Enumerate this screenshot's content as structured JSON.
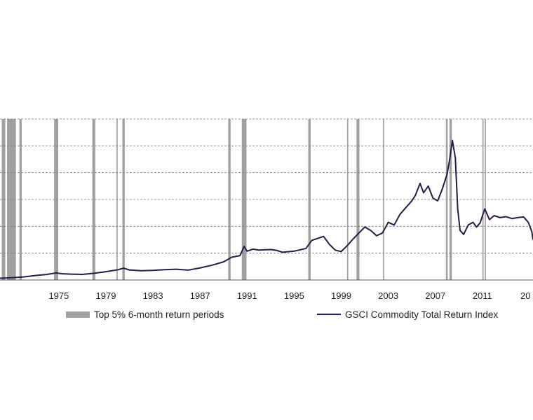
{
  "chart_data": {
    "type": "line",
    "title": "",
    "xlabel": "",
    "ylabel": "",
    "x_tick_labels": [
      "1975",
      "1979",
      "1983",
      "1987",
      "1991",
      "1995",
      "1999",
      "2003",
      "2007",
      "2011",
      "20"
    ],
    "grid": "horizontal dashed",
    "legend_position": "bottom",
    "legend": {
      "bars_label": "Top 5% 6-month return periods",
      "line_label": "GSCI Commodity Total Return Index"
    },
    "colors": {
      "line": "#2a1a48",
      "shade": "#a0a0a0",
      "grid": "#7f7f7f"
    },
    "highlight_periods": [
      [
        1970.15,
        1970.45
      ],
      [
        1970.6,
        1971.35
      ],
      [
        1971.65,
        1971.85
      ],
      [
        1974.6,
        1974.95
      ],
      [
        1977.85,
        1978.1
      ],
      [
        1979.9,
        1980.0
      ],
      [
        1980.4,
        1980.6
      ],
      [
        1989.4,
        1989.6
      ],
      [
        1990.55,
        1990.95
      ],
      [
        1996.2,
        1996.4
      ],
      [
        1999.5,
        1999.6
      ],
      [
        2000.3,
        2000.55
      ],
      [
        2002.55,
        2002.65
      ],
      [
        2007.9,
        2008.05
      ],
      [
        2008.2,
        2008.4
      ],
      [
        2011.0,
        2011.1
      ],
      [
        2011.2,
        2011.3
      ]
    ],
    "series": [
      {
        "name": "GSCI Commodity Total Return Index",
        "points": [
          [
            1970.0,
            130
          ],
          [
            1971.0,
            170
          ],
          [
            1972.0,
            230
          ],
          [
            1973.0,
            330
          ],
          [
            1974.0,
            420
          ],
          [
            1974.8,
            530
          ],
          [
            1975.2,
            470
          ],
          [
            1976.0,
            440
          ],
          [
            1977.0,
            420
          ],
          [
            1978.0,
            500
          ],
          [
            1979.0,
            620
          ],
          [
            1980.0,
            760
          ],
          [
            1980.5,
            880
          ],
          [
            1981.0,
            750
          ],
          [
            1982.0,
            690
          ],
          [
            1983.0,
            720
          ],
          [
            1984.0,
            770
          ],
          [
            1985.0,
            800
          ],
          [
            1986.0,
            740
          ],
          [
            1987.0,
            900
          ],
          [
            1988.0,
            1100
          ],
          [
            1989.0,
            1350
          ],
          [
            1989.7,
            1700
          ],
          [
            1990.4,
            1820
          ],
          [
            1990.75,
            2500
          ],
          [
            1991.0,
            2150
          ],
          [
            1991.5,
            2300
          ],
          [
            1992.0,
            2230
          ],
          [
            1993.0,
            2270
          ],
          [
            1993.5,
            2210
          ],
          [
            1994.0,
            2070
          ],
          [
            1995.0,
            2150
          ],
          [
            1996.0,
            2350
          ],
          [
            1996.5,
            2950
          ],
          [
            1997.0,
            3100
          ],
          [
            1997.5,
            3250
          ],
          [
            1998.0,
            2650
          ],
          [
            1998.5,
            2220
          ],
          [
            1999.0,
            2120
          ],
          [
            1999.5,
            2550
          ],
          [
            2000.0,
            3050
          ],
          [
            2000.5,
            3500
          ],
          [
            2001.0,
            3950
          ],
          [
            2001.5,
            3700
          ],
          [
            2002.0,
            3300
          ],
          [
            2002.5,
            3500
          ],
          [
            2003.0,
            4300
          ],
          [
            2003.5,
            4100
          ],
          [
            2004.0,
            4900
          ],
          [
            2004.6,
            5500
          ],
          [
            2005.0,
            5900
          ],
          [
            2005.3,
            6300
          ],
          [
            2005.7,
            7200
          ],
          [
            2006.0,
            6500
          ],
          [
            2006.4,
            7000
          ],
          [
            2006.8,
            6100
          ],
          [
            2007.2,
            5900
          ],
          [
            2007.6,
            6800
          ],
          [
            2008.0,
            7900
          ],
          [
            2008.2,
            8900
          ],
          [
            2008.45,
            10400
          ],
          [
            2008.7,
            9100
          ],
          [
            2008.9,
            5300
          ],
          [
            2009.1,
            3700
          ],
          [
            2009.4,
            3400
          ],
          [
            2009.8,
            4100
          ],
          [
            2010.2,
            4300
          ],
          [
            2010.5,
            3950
          ],
          [
            2010.8,
            4250
          ],
          [
            2011.2,
            5300
          ],
          [
            2011.4,
            4900
          ],
          [
            2011.6,
            4500
          ],
          [
            2012.0,
            4800
          ],
          [
            2012.5,
            4650
          ],
          [
            2013.0,
            4720
          ],
          [
            2013.5,
            4580
          ],
          [
            2014.0,
            4650
          ],
          [
            2014.5,
            4700
          ],
          [
            2014.9,
            4300
          ],
          [
            2015.2,
            3600
          ],
          [
            2015.3,
            3000
          ]
        ]
      }
    ]
  }
}
